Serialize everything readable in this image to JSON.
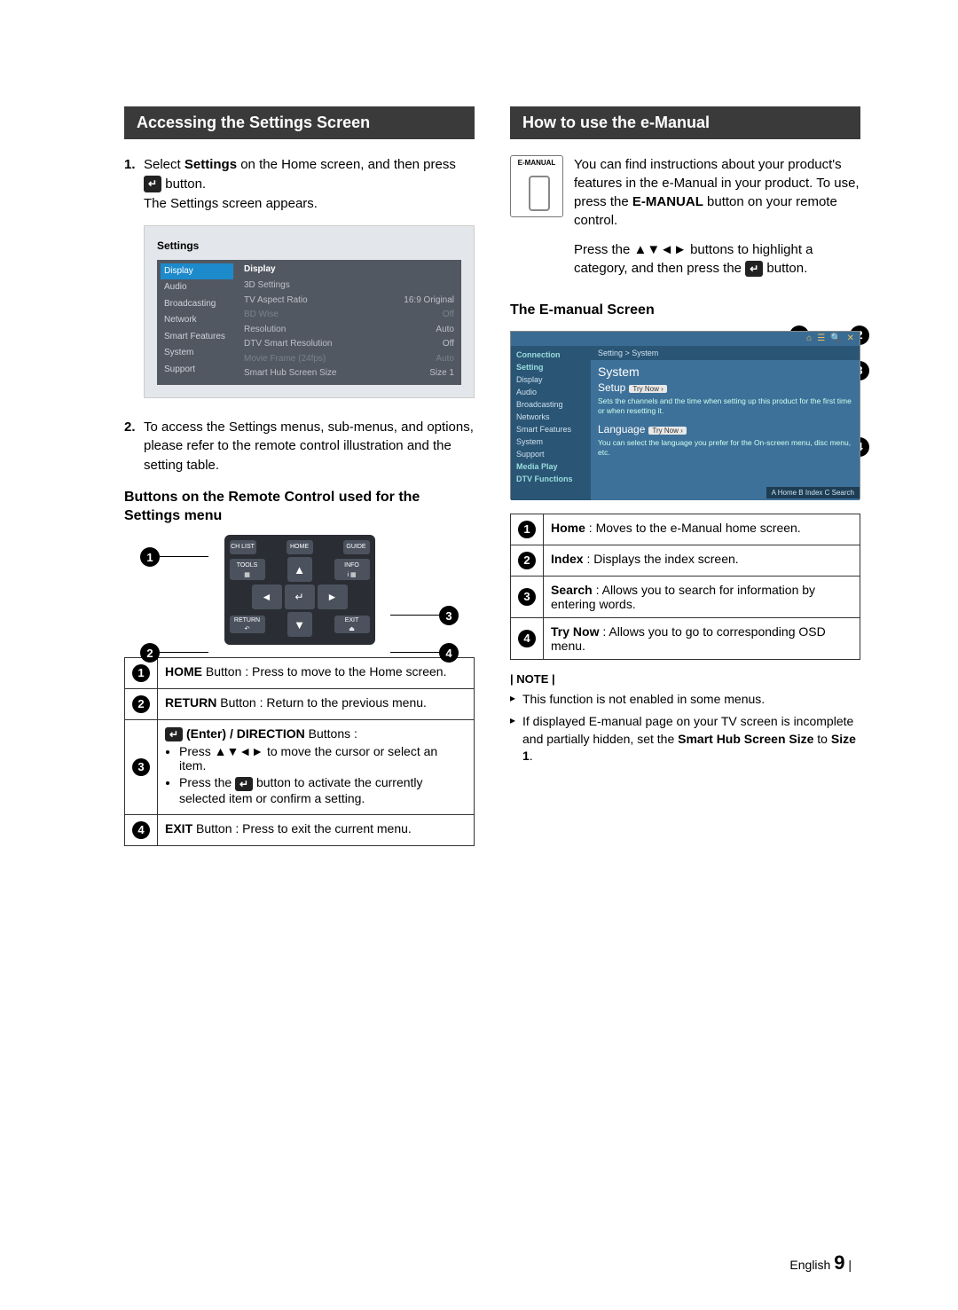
{
  "left": {
    "title": "Accessing the Settings Screen",
    "step1_a": "Select ",
    "step1_b": "Settings",
    "step1_c": " on the Home screen, and then press ",
    "step1_d": " button.",
    "step1_e": "The Settings screen appears.",
    "settings_label": "Settings",
    "sidebar": [
      "Display",
      "Audio",
      "Broadcasting",
      "Network",
      "Smart Features",
      "System",
      "Support"
    ],
    "main_header": "Display",
    "rows": [
      {
        "l": "3D Settings",
        "v": ""
      },
      {
        "l": "TV Aspect Ratio",
        "v": "16:9 Original"
      },
      {
        "l": "BD Wise",
        "v": "Off"
      },
      {
        "l": "Resolution",
        "v": "Auto"
      },
      {
        "l": "DTV Smart Resolution",
        "v": "Off"
      },
      {
        "l": "Movie Frame (24fps)",
        "v": "Auto"
      },
      {
        "l": "Smart Hub Screen Size",
        "v": "Size 1"
      }
    ],
    "step2": "To access the Settings menus, sub-menus, and options, please refer to the remote control illustration and the setting table.",
    "subhead": "Buttons on the Remote Control used for the Settings menu",
    "remote_labels": {
      "chlist": "CH LIST",
      "home": "HOME",
      "guide": "GUIDE",
      "tools": "TOOLS",
      "info": "INFO",
      "return": "RETURN",
      "exit": "EXIT"
    },
    "btable": {
      "r1": {
        "b": "HOME",
        "t": " Button : Press to move to the Home screen."
      },
      "r2": {
        "b": "RETURN",
        "t": " Button : Return to the previous menu."
      },
      "r3_head_b": "(Enter) / DIRECTION",
      "r3_head_t": " Buttons :",
      "r3_li1": "Press ▲▼◄► to move the cursor or select an item.",
      "r3_li2a": "Press the ",
      "r3_li2b": " button to activate the currently selected item or confirm a setting.",
      "r4": {
        "b": "EXIT",
        "t": " Button : Press to exit the current menu."
      }
    }
  },
  "right": {
    "title": "How to use the e-Manual",
    "intro_a": "You can find instructions about your product's features in the e-Manual in your product. To use, press the ",
    "intro_b": "E-MANUAL",
    "intro_c": " button on your remote control.",
    "intro_d": "Press the ▲▼◄► buttons to highlight a category, and then press the ",
    "intro_e": " button.",
    "subhead": "The E-manual Screen",
    "em_side_top": "Connection",
    "em_side_setting": "Setting",
    "em_side": [
      "Display",
      "Audio",
      "Broadcasting",
      "Networks",
      "Smart Features",
      "System",
      "Support"
    ],
    "em_side_b": [
      "Media Play",
      "DTV Functions"
    ],
    "em_crumb": "Setting > System",
    "em_h1": "System",
    "em_h2": "Setup",
    "em_t1": "Sets the channels and the time when setting up this product for the first time or when resetting it.",
    "em_h3": "Language",
    "em_t2": "You can select the language you prefer for the On-screen menu, disc menu, etc.",
    "em_foot": "A Home  B Index  C Search",
    "etable": {
      "r1": {
        "b": "Home",
        "t": " : Moves to the e-Manual home screen."
      },
      "r2": {
        "b": "Index",
        "t": " : Displays the index screen."
      },
      "r3": {
        "b": "Search",
        "t": " : Allows you to search for information by entering words."
      },
      "r4": {
        "b": "Try Now",
        "t": " : Allows you to go to corresponding OSD menu."
      }
    },
    "note_label": "| NOTE |",
    "note1": "This function is not enabled in some menus.",
    "note2_a": "If displayed E-manual page on your TV screen is incomplete and partially hidden, set the ",
    "note2_b": "Smart Hub Screen Size",
    "note2_c": " to ",
    "note2_d": "Size 1",
    "note2_e": "."
  },
  "footer": {
    "lang": "English",
    "page": "9"
  }
}
